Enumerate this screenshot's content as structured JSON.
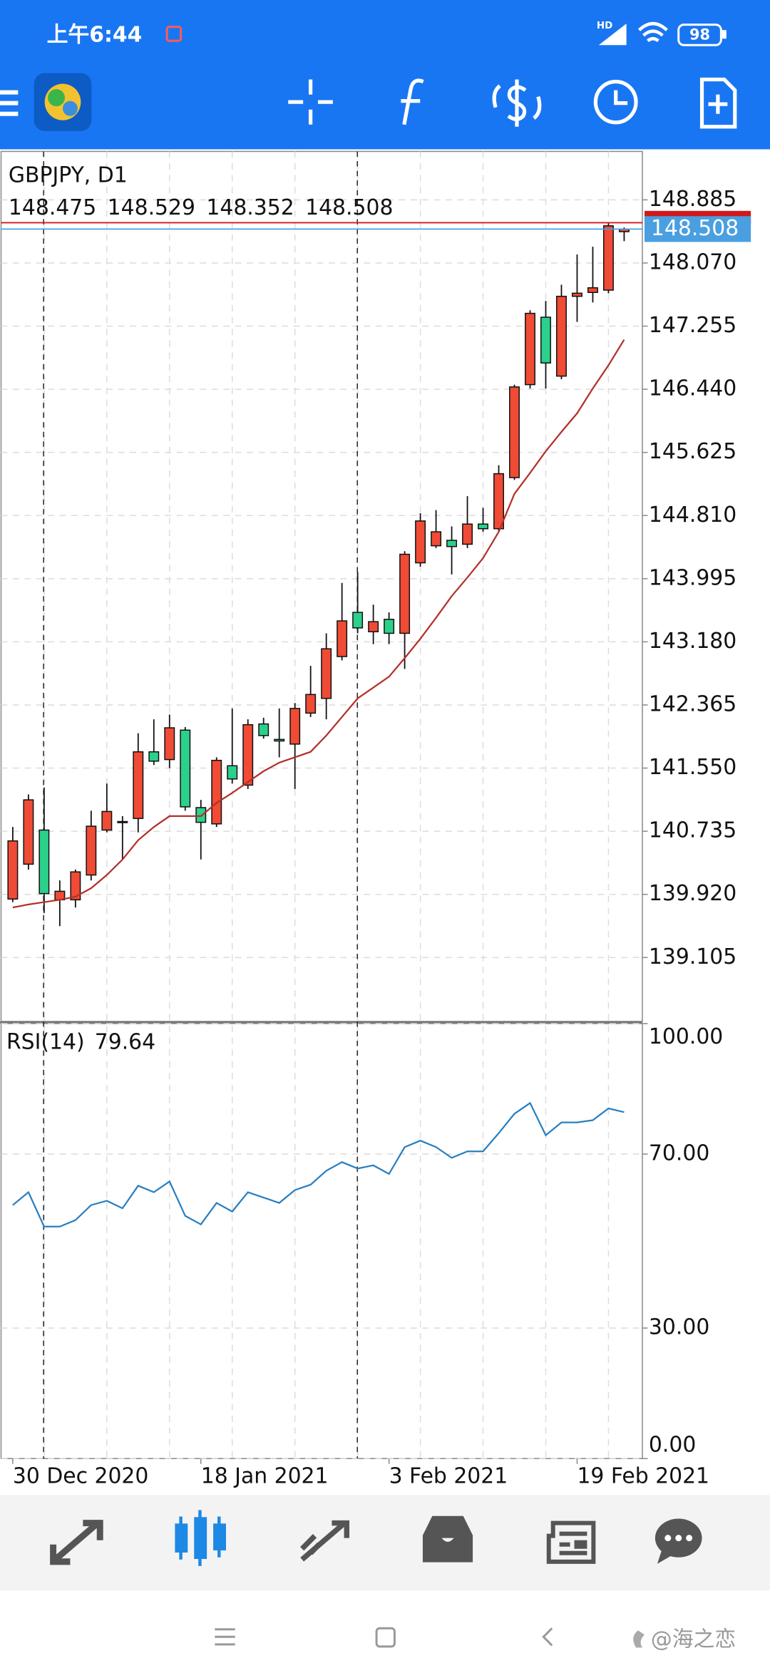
{
  "status_bar": {
    "time": "上午6:44",
    "network": "HD",
    "battery": "98"
  },
  "chart_data": {
    "type": "candlestick",
    "title": "GBPJPY, D1",
    "up_color": "#ef4b35",
    "down_color": "#2bd18b",
    "grid": true,
    "categories": [
      "30 Dec 2020",
      null,
      null,
      null,
      null,
      null,
      null,
      null,
      null,
      null,
      null,
      null,
      "18 Jan 2021",
      null,
      null,
      null,
      null,
      null,
      null,
      null,
      null,
      null,
      null,
      null,
      "3 Feb 2021",
      null,
      null,
      null,
      null,
      null,
      null,
      null,
      null,
      null,
      null,
      null,
      "19 Feb 2021",
      null,
      null,
      null
    ],
    "open": [
      139.86,
      140.31,
      140.75,
      139.85,
      139.85,
      140.17,
      140.75,
      140.85,
      140.9,
      141.76,
      141.66,
      142.04,
      141.04,
      140.83,
      141.58,
      141.33,
      142.12,
      141.92,
      141.86,
      142.26,
      142.45,
      142.99,
      143.56,
      143.31,
      143.47,
      143.29,
      144.2,
      144.42,
      144.49,
      144.44,
      144.7,
      144.64,
      145.3,
      146.5,
      147.37,
      146.61,
      147.64,
      147.69,
      147.72,
      148.475
    ],
    "high": [
      140.79,
      141.21,
      141.3,
      140.1,
      140.24,
      141.0,
      141.35,
      140.93,
      142.0,
      142.18,
      142.24,
      142.08,
      141.14,
      141.69,
      142.32,
      142.18,
      142.2,
      142.32,
      142.39,
      142.87,
      143.29,
      143.94,
      144.08,
      143.66,
      143.56,
      144.35,
      144.84,
      144.88,
      144.67,
      145.06,
      144.91,
      145.46,
      146.5,
      147.46,
      147.58,
      147.79,
      148.18,
      148.28,
      148.59,
      148.529
    ],
    "low": [
      139.82,
      140.24,
      139.68,
      139.51,
      139.75,
      140.1,
      140.72,
      140.37,
      140.72,
      141.59,
      141.55,
      141.0,
      140.37,
      140.79,
      141.35,
      141.28,
      141.93,
      141.69,
      141.28,
      142.21,
      142.18,
      142.94,
      143.29,
      143.15,
      143.15,
      142.83,
      144.15,
      144.39,
      144.05,
      144.39,
      144.6,
      144.6,
      145.27,
      146.45,
      146.45,
      146.57,
      147.31,
      147.56,
      147.68,
      148.352
    ],
    "close": [
      140.61,
      141.14,
      139.93,
      139.96,
      140.21,
      140.8,
      140.99,
      140.86,
      141.76,
      141.64,
      142.07,
      141.05,
      140.85,
      141.65,
      141.41,
      142.11,
      141.97,
      141.9,
      142.32,
      142.5,
      143.09,
      143.45,
      143.36,
      143.44,
      143.29,
      144.31,
      144.74,
      144.6,
      144.41,
      144.7,
      144.64,
      145.35,
      146.47,
      147.42,
      146.78,
      147.64,
      147.68,
      147.75,
      148.55,
      148.508
    ],
    "ma": {
      "color": "#b3302a",
      "values": [
        139.75,
        139.79,
        139.82,
        139.85,
        139.89,
        140.0,
        140.17,
        140.37,
        140.62,
        140.79,
        140.93,
        140.93,
        140.93,
        141.1,
        141.23,
        141.37,
        141.51,
        141.62,
        141.69,
        141.76,
        141.97,
        142.21,
        142.45,
        142.59,
        142.73,
        142.97,
        143.22,
        143.49,
        143.77,
        144.01,
        144.26,
        144.6,
        145.09,
        145.36,
        145.64,
        145.89,
        146.13,
        146.45,
        146.75,
        147.08
      ]
    },
    "bid": 148.508,
    "bid_color": "#4a9fe0",
    "ask": 148.59,
    "ask_color": "#d0191b",
    "ylim": [
      138.28,
      149.51
    ],
    "yticks": [
      148.885,
      {
        "value": 148.07,
        "label": "148.070"
      },
      147.255,
      {
        "value": 146.44,
        "label": "146.440"
      },
      145.625,
      {
        "value": 144.81,
        "label": "144.810"
      },
      143.995,
      {
        "value": 143.18,
        "label": "143.180"
      },
      142.365,
      {
        "value": 141.55,
        "label": "141.550"
      },
      140.735,
      {
        "value": 139.92,
        "label": "139.920"
      },
      139.105
    ],
    "rsi": {
      "name": "RSI(14)",
      "color": "#2a7fc0",
      "ylim": [
        0,
        100
      ],
      "yticks": [
        {
          "value": 100,
          "label": "100.00"
        },
        {
          "value": 70,
          "label": "70.00"
        },
        {
          "value": 30,
          "label": "30.00"
        },
        {
          "value": 0,
          "label": "0.00"
        }
      ],
      "values": [
        58.27,
        61.23,
        53.33,
        53.33,
        54.81,
        58.27,
        59.26,
        57.53,
        62.72,
        61.23,
        63.7,
        55.8,
        53.83,
        58.77,
        56.79,
        61.23,
        60.0,
        58.77,
        61.73,
        62.96,
        66.17,
        68.15,
        66.67,
        67.41,
        65.43,
        71.6,
        73.09,
        71.6,
        69.14,
        70.62,
        70.62,
        74.81,
        79.26,
        81.73,
        74.32,
        77.28,
        77.28,
        77.78,
        80.49,
        79.64
      ]
    }
  },
  "watermark": "@海之恋"
}
